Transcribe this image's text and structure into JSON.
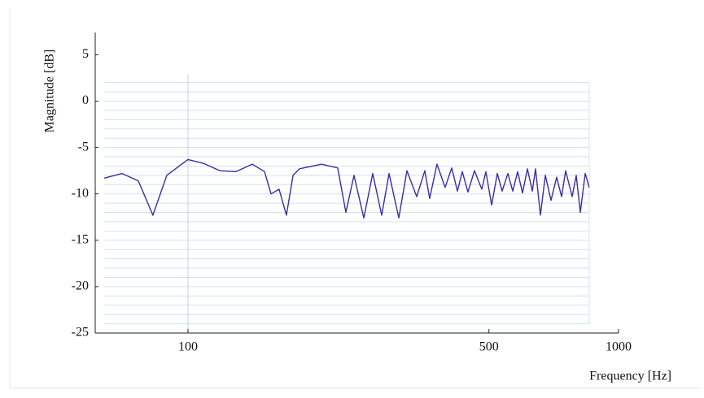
{
  "chart_data": {
    "type": "line",
    "x_label": "Frequency [Hz]",
    "y_label": "Magnitude [dB]",
    "xscale": "log",
    "xlim": [
      60.9,
      1000
    ],
    "ylim": [
      -25,
      7.4
    ],
    "xticks": [
      100,
      500,
      1000
    ],
    "yticks": [
      5,
      0,
      -5,
      -10,
      -15,
      -20,
      -25
    ],
    "minor_yticks": [
      2,
      1,
      0,
      -1,
      -2,
      -3,
      -4,
      -5,
      -6,
      -7,
      -8,
      -9,
      -10,
      -11,
      -12,
      -13,
      -14,
      -15,
      -16,
      -17,
      -18,
      -19,
      -20,
      -21,
      -22,
      -23,
      -24
    ],
    "vertical_grid": [
      100
    ],
    "grid": true,
    "series": [
      {
        "name": "Magnitude",
        "color": "#3a2ca8",
        "x": [
          63.9,
          70.3,
          76.7,
          82.9,
          89.3,
          100,
          108.6,
          118.5,
          129.3,
          141.1,
          150.6,
          155.9,
          162.8,
          169.3,
          175.4,
          181.5,
          204.2,
          222.7,
          232.7,
          243.0,
          256.1,
          268.6,
          281.8,
          293.1,
          308.8,
          322.5,
          339.8,
          354.9,
          364.2,
          378.7,
          395.6,
          409.8,
          422.5,
          433.6,
          446.9,
          462.8,
          481.3,
          491.9,
          507.3,
          522.9,
          536.7,
          553.3,
          567.9,
          583.0,
          598.4,
          614.3,
          630.5,
          641.6,
          658.5,
          676.0,
          696.8,
          718.3,
          737.4,
          753.6,
          780.3,
          797.5,
          815.1,
          836.7,
          855.0
        ],
        "values": [
          -8.3,
          -7.8,
          -8.6,
          -12.3,
          -8.0,
          -6.3,
          -6.7,
          -7.5,
          -7.6,
          -6.8,
          -7.6,
          -10.0,
          -9.5,
          -12.3,
          -8.0,
          -7.3,
          -6.8,
          -7.2,
          -12.0,
          -8.0,
          -12.6,
          -7.8,
          -12.3,
          -7.8,
          -12.6,
          -7.5,
          -10.3,
          -7.5,
          -10.5,
          -6.8,
          -9.3,
          -7.2,
          -9.7,
          -7.6,
          -9.8,
          -7.5,
          -9.5,
          -7.6,
          -11.2,
          -7.8,
          -9.7,
          -7.8,
          -9.7,
          -7.6,
          -9.9,
          -7.3,
          -9.7,
          -7.3,
          -12.3,
          -8.0,
          -10.7,
          -8.2,
          -10.3,
          -7.5,
          -10.3,
          -8.0,
          -12.0,
          -7.8,
          -9.3
        ]
      }
    ]
  }
}
